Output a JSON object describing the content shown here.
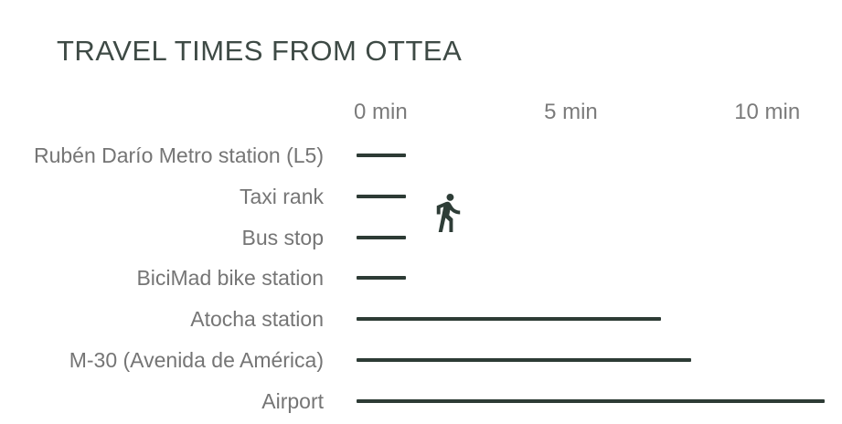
{
  "chart_data": {
    "type": "bar",
    "orientation": "horizontal",
    "title": "TRAVEL TIMES FROM OTTEA",
    "categories": [
      "Rubén Darío Metro station (L5)",
      "Taxi rank",
      "Bus stop",
      "BiciMad bike station",
      "Atocha station",
      "M-30 (Avenida de América)",
      "Airport"
    ],
    "values": [
      1.3,
      1.3,
      1.3,
      1.3,
      8,
      8.8,
      12.3
    ],
    "unit": "min",
    "xlabel": "",
    "ylabel": "",
    "xlim": [
      0,
      12.8
    ],
    "x_ticks": [
      "0 min",
      "5 min",
      "10 min"
    ],
    "x_tick_values": [
      0,
      5,
      10
    ],
    "grid": false,
    "legend": false,
    "annotations": [
      {
        "icon": "walking-person-icon",
        "rows_spanned": [
          "Taxi rank",
          "Bus stop"
        ]
      }
    ]
  },
  "colors": {
    "background": "#ffffff",
    "bar": "#2d3b35",
    "title": "#3e4a45",
    "label": "#757575",
    "axis": "#7b7b7b",
    "icon": "#2e3d37"
  }
}
